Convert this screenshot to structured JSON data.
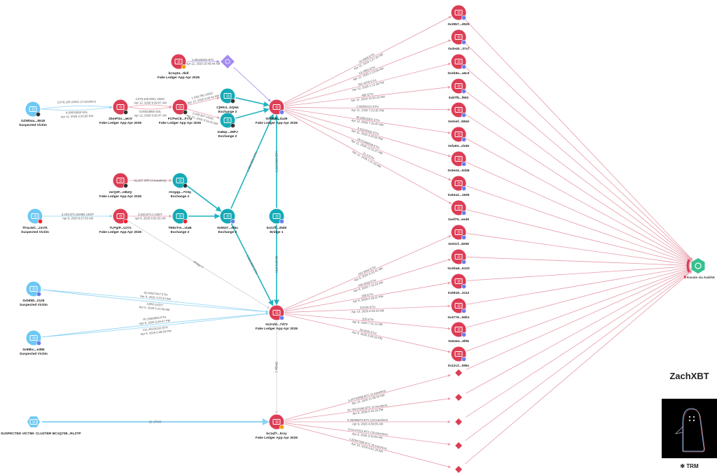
{
  "colors": {
    "fake_ledger": "#dc3d55",
    "exchange": "#14aab5",
    "victim": "#6cc8f4",
    "kucoin": "#38c08f",
    "purple": "#a58bf0",
    "edge_red": "#e79aa8",
    "edge_teal": "#1fb3bf",
    "edge_blue": "#8fd3f3",
    "edge_gray": "#cfcfd6"
  },
  "nodes": [
    {
      "id": "btctop",
      "label": "bc1q34...tkdl",
      "sub": "Fake Ledger App Apr 2026",
      "type": "fake",
      "badge": "#f39c12"
    },
    {
      "id": "dia_top",
      "type": "diamond_purple"
    },
    {
      "id": "v1",
      "label": "GZWb4a...5518",
      "sub": "Suspected Victim",
      "type": "victim",
      "badge": "#333"
    },
    {
      "id": "n2",
      "label": "2bmPSn...aKIV",
      "sub": "Fake Ledger App Apr 2026",
      "type": "fake",
      "badge": "#333"
    },
    {
      "id": "n3",
      "label": "FCPwCE...Fr7p",
      "sub": "Fake Ledger App Apr 2026",
      "type": "fake",
      "badge": "#333"
    },
    {
      "id": "ex1",
      "label": "CjRKd...bQN4",
      "sub": "Exchange 2",
      "type": "exchange",
      "badge": "#333"
    },
    {
      "id": "ex2",
      "label": "m46qr...29PJ",
      "sub": "Exchange 2",
      "type": "exchange",
      "badge": "#333"
    },
    {
      "id": "hub1",
      "label": "0x6876...da39",
      "sub": "Fake Ledger App Apr 2026",
      "type": "fake",
      "badge": "#6b7cf0"
    },
    {
      "id": "mr",
      "label": "mrQ2F...cBUQ",
      "sub": "Fake Ledger App Apr 2026",
      "type": "fake",
      "badge": "#333"
    },
    {
      "id": "rg",
      "label": "rGrgqp...7V3q",
      "sub": "Exchange 2",
      "type": "exchange",
      "badge": "#333"
    },
    {
      "id": "v2",
      "label": "TFaLWC...zm7K",
      "sub": "Suspected Victim",
      "type": "victim",
      "badge": "#e23"
    },
    {
      "id": "tl",
      "label": "TLPgiP...UJ7s",
      "sub": "Fake Ledger App Apr 2026",
      "type": "fake",
      "badge": "#e23"
    },
    {
      "id": "tb",
      "label": "TB9xTm...xtaB",
      "sub": "Exchange 2",
      "type": "exchange",
      "badge": "#e23"
    },
    {
      "id": "ex0x",
      "label": "0x9637...ef9a",
      "sub": "Exchange 2",
      "type": "exchange",
      "badge": "#6b7cf0"
    },
    {
      "id": "bridge",
      "label": "0x2cff...2b80",
      "sub": "Bridge 1",
      "type": "exchange",
      "badge": "#6b7cf0"
    },
    {
      "id": "v3",
      "label": "0xb958...2126",
      "sub": "Suspected Victim",
      "type": "victim",
      "badge": "#6b7cf0"
    },
    {
      "id": "v4",
      "label": "0x98bc...ed85",
      "sub": "Suspected Victim",
      "type": "victim",
      "badge": "#6b7cf0"
    },
    {
      "id": "hub2",
      "label": "0x2cdd...7d73",
      "sub": "Fake Ledger App Apr 2026",
      "type": "fake",
      "badge": "#6b7cf0"
    },
    {
      "id": "cluster",
      "label": "SUSPECTED VICTIM: CLUSTER BC1Q708...RLZTP",
      "sub": "",
      "type": "victim_hex"
    },
    {
      "id": "hub3",
      "label": "bc1qf7...5rxy",
      "sub": "Fake Ledger App Apr 2026",
      "type": "fake",
      "badge": "#f39c12"
    },
    {
      "id": "r1",
      "label": "0x2957...d520",
      "type": "fake",
      "badge": "#6b7cf0"
    },
    {
      "id": "r2",
      "label": "0xde40...07cf",
      "type": "fake",
      "badge": "#6b7cf0"
    },
    {
      "id": "r3",
      "label": "0xeb9a...a6c0",
      "type": "fake",
      "badge": "#6b7cf0"
    },
    {
      "id": "r4",
      "label": "0x87f5...f692",
      "type": "fake",
      "badge": "#6b7cf0"
    },
    {
      "id": "r5",
      "label": "0x0eef...555d",
      "type": "fake",
      "badge": "#6b7cf0"
    },
    {
      "id": "r6",
      "label": "0xfa93...d159",
      "type": "fake",
      "badge": "#6b7cf0"
    },
    {
      "id": "r7",
      "label": "0x5e44...5d46",
      "type": "fake",
      "badge": "#6b7cf0"
    },
    {
      "id": "r8",
      "label": "0x63a2...1835",
      "type": "fake",
      "badge": "#6b7cf0"
    },
    {
      "id": "r9",
      "label": "0xef79...eed9",
      "type": "fake",
      "badge": "#6b7cf0"
    },
    {
      "id": "r10",
      "label": "0x02cf...8269",
      "type": "fake",
      "badge": "#6b7cf0"
    },
    {
      "id": "r11",
      "label": "0xdda8...6103",
      "type": "fake",
      "badge": "#6b7cf0"
    },
    {
      "id": "r12",
      "label": "0x5918...3112",
      "type": "fake",
      "badge": "#6b7cf0"
    },
    {
      "id": "r13",
      "label": "0x4776...56b1",
      "type": "fake",
      "badge": "#6b7cf0"
    },
    {
      "id": "r14",
      "label": "0x6444...6f06",
      "type": "fake",
      "badge": "#6b7cf0"
    },
    {
      "id": "r15",
      "label": "0x12c2...596c",
      "type": "fake",
      "badge": "#6b7cf0"
    },
    {
      "id": "d1",
      "type": "diamond_red"
    },
    {
      "id": "d2",
      "type": "diamond_red"
    },
    {
      "id": "d3",
      "type": "diamond_red"
    },
    {
      "id": "d4",
      "type": "diamond_red"
    },
    {
      "id": "d5",
      "type": "diamond_red"
    },
    {
      "id": "kucoin",
      "label": "Kucoin via AudiA6",
      "type": "kucoin"
    }
  ],
  "edges": [
    {
      "from": "btctop",
      "to": "dia_top",
      "color": "purple",
      "label": [
        "2.08425304 BTC",
        "Apr 12, 2026 10:40:44 AM"
      ]
    },
    {
      "from": "dia_top",
      "to": "hub1",
      "color": "purple"
    },
    {
      "from": "v1",
      "to": "n2",
      "color": "edge_blue",
      "curve": -6,
      "label": [
        "2,079,100 USDC (3 transfers)"
      ]
    },
    {
      "from": "v1",
      "to": "n2",
      "color": "edge_blue",
      "curve": 6,
      "label": [
        "0.00003958 SOL",
        "Apr 11, 2026 2:30:56 PM"
      ]
    },
    {
      "from": "n2",
      "to": "n3",
      "color": "edge_red",
      "curve": -6,
      "label": [
        "2,079,100.0001 USDC",
        "Apr 12, 2026 9:29:07 AM"
      ]
    },
    {
      "from": "n2",
      "to": "n3",
      "color": "edge_red",
      "curve": 6,
      "label": [
        "0.00033958 SOL",
        "Apr 12, 2026 9:29:47 AM"
      ]
    },
    {
      "from": "n3",
      "to": "ex1",
      "color": "edge_red",
      "label": [
        "1,039,780 USDC",
        "Apr 12, 2026 9:30:42 AM"
      ]
    },
    {
      "from": "n3",
      "to": "ex2",
      "color": "edge_red",
      "label": [
        "1,039,307 USDC",
        "Apr 12, 2026 9:31:02 AM"
      ]
    },
    {
      "from": "ex1",
      "to": "hub1",
      "color": "edge_teal"
    },
    {
      "from": "ex2",
      "to": "hub1",
      "color": "edge_teal"
    },
    {
      "from": "mr",
      "to": "rg",
      "color": "edge_red",
      "label": [
        "91,937 XRP (4 transfers)"
      ]
    },
    {
      "from": "rg",
      "to": "ex0x",
      "color": "edge_teal"
    },
    {
      "from": "v2",
      "to": "tl",
      "color": "edge_blue",
      "label": [
        "3,233,873.182086 USDT",
        "Apr 9, 2026 9:27:03 AM"
      ]
    },
    {
      "from": "tl",
      "to": "tb",
      "color": "edge_red",
      "label": [
        "3,233,873.1 USDT",
        "Apr 9, 2026 9:32:03 AM"
      ]
    },
    {
      "from": "tb",
      "to": "ex0x",
      "color": "edge_teal"
    },
    {
      "from": "ex0x",
      "to": "hub1",
      "color": "edge_teal",
      "label": [
        "1,356.2891 ETH"
      ]
    },
    {
      "from": "ex0x",
      "to": "hub2",
      "color": "edge_teal",
      "label": [
        "1,119.9987 ETH"
      ]
    },
    {
      "from": "bridge",
      "to": "hub1",
      "color": "edge_teal",
      "label": [
        "1,116.0099 ETH"
      ]
    },
    {
      "from": "bridge",
      "to": "hub2",
      "color": "edge_teal",
      "label": [
        "98.0271 ETH"
      ]
    },
    {
      "from": "tl",
      "to": "hub2",
      "color": "edge_gray",
      "label": [
        "Bridge 2"
      ]
    },
    {
      "from": "v3",
      "to": "hub2",
      "color": "edge_blue",
      "curve": -3,
      "label": [
        "92.84027047 ETH",
        "Apr 9, 2026 4:33:23 AM"
      ]
    },
    {
      "from": "v3",
      "to": "hub2",
      "color": "edge_blue",
      "curve": 4,
      "label": [
        "3,850 USDT",
        "Apr 9, 2026 5:31:59 AM"
      ]
    },
    {
      "from": "v4",
      "to": "hub2",
      "color": "edge_blue",
      "curve": -3,
      "label": [
        "70.22689965 ETH",
        "Apr 8, 2026 5:49:47 PM"
      ]
    },
    {
      "from": "v4",
      "to": "hub2",
      "color": "edge_blue",
      "curve": 3,
      "label": [
        "211.34224233 ETH",
        "Apr 8, 2026 5:48:59 PM"
      ]
    },
    {
      "from": "hub2",
      "to": "hub3",
      "color": "edge_gray",
      "label": [
        "Bridge 1"
      ]
    },
    {
      "from": "cluster",
      "to": "hub3",
      "color": "edge_blue",
      "label": [
        "21 UTXO"
      ]
    },
    {
      "from": "hub1",
      "to": "r1",
      "color": "edge_red",
      "label": [
        "20.0909 ETH",
        "Apr 12, 2026 1:07:20 AM"
      ]
    },
    {
      "from": "hub1",
      "to": "r2",
      "color": "edge_red",
      "label": [
        "14.2994 ETH",
        "Apr 12, 2026 1:13:06 AM"
      ]
    },
    {
      "from": "hub1",
      "to": "r3",
      "color": "edge_red",
      "label": [
        "391.4378 ETH",
        "Apr 12, 2026 1:12:36 PM"
      ]
    },
    {
      "from": "hub1",
      "to": "r4",
      "color": "edge_red",
      "label": [
        "480 ETH",
        "Apr 12, 2026 10:03:23 AM"
      ]
    },
    {
      "from": "hub1",
      "to": "r5",
      "color": "edge_red",
      "label": [
        "0.09800011 ETH",
        "Apr 11, 2026 7:20:35 PM"
      ]
    },
    {
      "from": "hub1",
      "to": "r6",
      "color": "edge_red",
      "label": [
        "30.56816201 ETH",
        "Apr 12, 2026 7:15:47 AM"
      ]
    },
    {
      "from": "hub1",
      "to": "r7",
      "color": "edge_red",
      "label": [
        "5.01109436 ETH",
        "Apr 11, 2026 3:20:35 PM"
      ]
    },
    {
      "from": "hub1",
      "to": "r8",
      "color": "edge_red",
      "label": [
        "28.61948558 ETH",
        "Apr 11, 2026 12:52:27 AM"
      ]
    },
    {
      "from": "hub1",
      "to": "r9",
      "color": "edge_red",
      "label": [
        "21.4 ETH",
        "Apr 12, 2026 1:21:23 AM"
      ]
    },
    {
      "from": "hub2",
      "to": "r10",
      "color": "edge_red",
      "label": [
        "260.9944 ETH",
        "Apr 9, 2026 6:33:41 AM"
      ]
    },
    {
      "from": "hub2",
      "to": "r11",
      "color": "edge_red",
      "label": [
        "106.4934 ETH",
        "Apr 9, 2026 7:12:24 AM"
      ]
    },
    {
      "from": "hub2",
      "to": "r12",
      "color": "edge_red",
      "label": [
        "200 ETH",
        "Apr 9, 2026 5:18:37 PM"
      ]
    },
    {
      "from": "hub2",
      "to": "r13",
      "color": "edge_red",
      "label": [
        "319.09 ETH",
        "Apr 10, 2026 4:03:22 AM"
      ]
    },
    {
      "from": "hub2",
      "to": "r14",
      "color": "edge_red",
      "label": [
        "100 ETH",
        "Apr 9, 2026 7:11:11 AM"
      ]
    },
    {
      "from": "hub2",
      "to": "r15",
      "color": "edge_red",
      "label": [
        "33.0025 ETH",
        "Apr 9, 2026 2:40:23 PM"
      ]
    },
    {
      "from": "hub3",
      "to": "d1",
      "color": "edge_red",
      "label": [
        "6.05763098 BTC (2 transfers)",
        "Apr 10, 2026 11:48:50 AM"
      ]
    },
    {
      "from": "hub3",
      "to": "d2",
      "color": "edge_red",
      "label": [
        "20.78537996 BTC (4 transfers)",
        "Apr 8, 2026 6:15:16 PM"
      ]
    },
    {
      "from": "hub3",
      "to": "d3",
      "color": "edge_red",
      "label": [
        "5.29266973 BTC (10 transfers)",
        "Apr 9, 2026 4:39:05 AM"
      ]
    },
    {
      "from": "hub3",
      "to": "d4",
      "color": "edge_red",
      "label": [
        "3.51147623 BTC (19 transfers)",
        "Apr 8, 2026 3:10:03 AM"
      ]
    },
    {
      "from": "hub3",
      "to": "d5",
      "color": "edge_red",
      "label": [
        "1.82647568 BTC (9 transfers)",
        "Apr 10, 2026 9:51:28 AM"
      ]
    },
    {
      "from": "r1",
      "to": "kucoin",
      "color": "edge_red"
    },
    {
      "from": "r2",
      "to": "kucoin",
      "color": "edge_red"
    },
    {
      "from": "r3",
      "to": "kucoin",
      "color": "edge_red"
    },
    {
      "from": "r4",
      "to": "kucoin",
      "color": "edge_red"
    },
    {
      "from": "r5",
      "to": "kucoin",
      "color": "edge_red"
    },
    {
      "from": "r6",
      "to": "kucoin",
      "color": "edge_red"
    },
    {
      "from": "r7",
      "to": "kucoin",
      "color": "edge_red"
    },
    {
      "from": "r8",
      "to": "kucoin",
      "color": "edge_red"
    },
    {
      "from": "r9",
      "to": "kucoin",
      "color": "edge_red"
    },
    {
      "from": "r10",
      "to": "kucoin",
      "color": "edge_red"
    },
    {
      "from": "r11",
      "to": "kucoin",
      "color": "edge_red"
    },
    {
      "from": "r12",
      "to": "kucoin",
      "color": "edge_red"
    },
    {
      "from": "r13",
      "to": "kucoin",
      "color": "edge_red"
    },
    {
      "from": "r14",
      "to": "kucoin",
      "color": "edge_red"
    },
    {
      "from": "r15",
      "to": "kucoin",
      "color": "edge_red"
    },
    {
      "from": "d1",
      "to": "kucoin",
      "color": "edge_red"
    },
    {
      "from": "d2",
      "to": "kucoin",
      "color": "edge_red"
    },
    {
      "from": "d3",
      "to": "kucoin",
      "color": "edge_red"
    },
    {
      "from": "d4",
      "to": "kucoin",
      "color": "edge_red"
    },
    {
      "from": "d5",
      "to": "kucoin",
      "color": "edge_red"
    }
  ],
  "branding": {
    "author": "ZachXBT",
    "logo": "TRM"
  }
}
